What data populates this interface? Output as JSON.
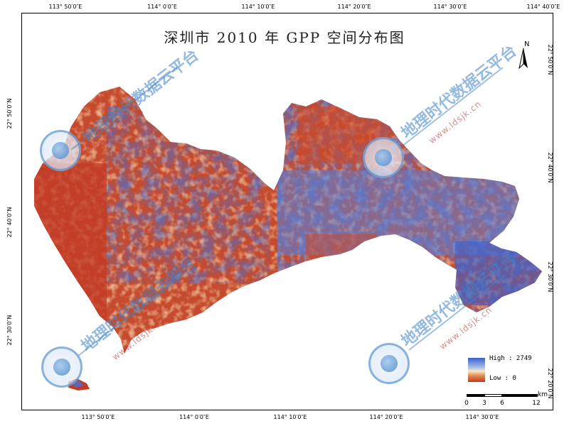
{
  "map": {
    "title": "深圳市 2010 年 GPP 空间分布图",
    "top_ticks": [
      "113° 50′0″E",
      "114° 0′0″E",
      "114° 10′0″E",
      "114° 20′0″E",
      "114° 30′0″E",
      "114° 40′0″E"
    ],
    "bottom_ticks": [
      "113° 50′0″E",
      "114° 0′0″E",
      "114° 10′0″E",
      "114° 20′0″E",
      "114° 30′0″E"
    ],
    "left_ticks": [
      "22° 50′0″N",
      "22° 40′0″N",
      "22° 30′0″N"
    ],
    "right_ticks": [
      "22° 50′0″N",
      "22° 40′0″N",
      "22° 30′0″N",
      "22° 20′0″N"
    ],
    "north_label": "N"
  },
  "legend": {
    "high_label": "High : 2749",
    "low_label": "Low : 0",
    "colors": [
      "#3a5fcd",
      "#a9bfe6",
      "#f4e9c8",
      "#e4874c",
      "#c23a26"
    ]
  },
  "scale": {
    "unit": "km",
    "labels": [
      "0",
      "3",
      "6",
      "12"
    ]
  },
  "watermark": {
    "text": "地理时代数据云平台",
    "url": "www.ldsjk.cn"
  }
}
